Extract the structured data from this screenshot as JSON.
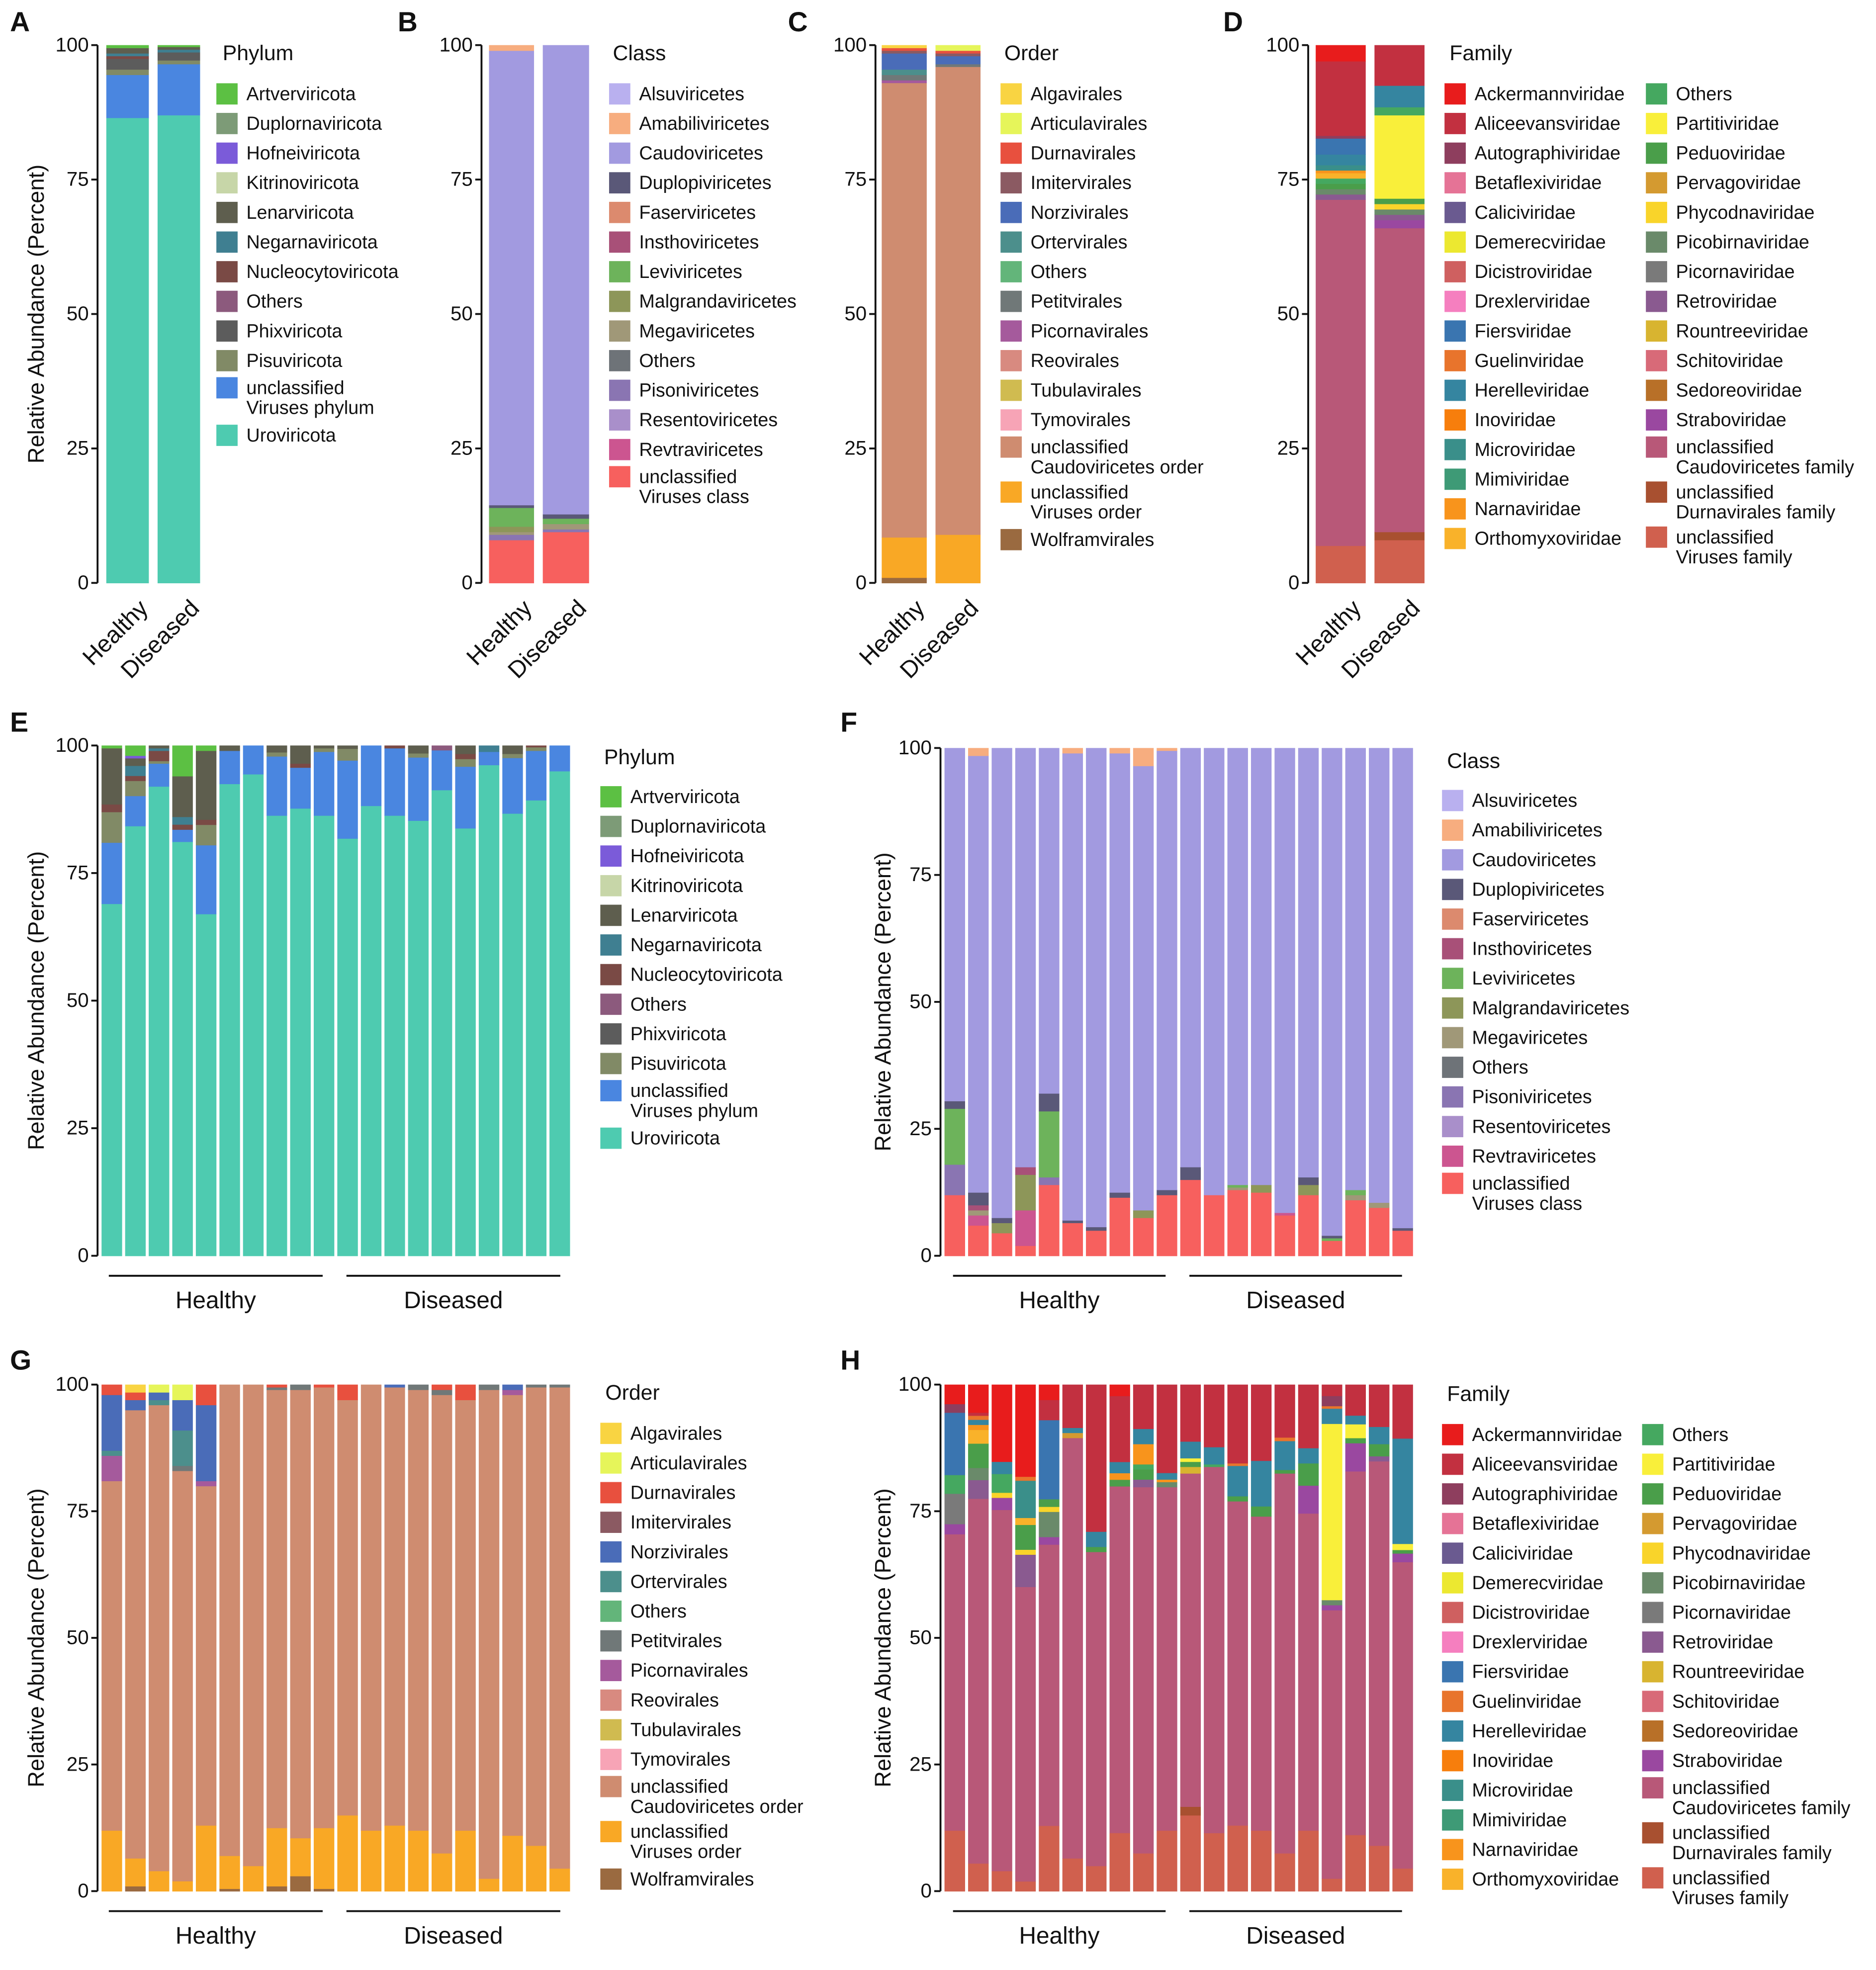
{
  "legends": {
    "phylum": {
      "title": "Phylum",
      "labels": [
        "Artverviricota",
        "Duplornaviricota",
        "Hofneiviricota",
        "Kitrinoviricota",
        "Lenarviricota",
        "Negarnaviricota",
        "Nucleocytoviricota",
        "Others",
        "Phixviricota",
        "Pisuviricota",
        "unclassified Viruses phylum",
        "Uroviricota"
      ],
      "colors": [
        "#5cc043",
        "#7d9b77",
        "#7b5bd9",
        "#c7d6a8",
        "#5e5e4e",
        "#3f7f91",
        "#7a4a45",
        "#8c5a7d",
        "#5c5c5c",
        "#818a66",
        "#4a86e0",
        "#4ecbb0"
      ]
    },
    "class": {
      "title": "Class",
      "labels": [
        "Alsuviricetes",
        "Amabiliviricetes",
        "Caudoviricetes",
        "Duplopiviricetes",
        "Faserviricetes",
        "Insthoviricetes",
        "Leviviricetes",
        "Malgrandaviricetes",
        "Megaviricetes",
        "Others",
        "Pisoniviricetes",
        "Resentoviricetes",
        "Revtraviricetes",
        "unclassified Viruses class"
      ],
      "colors": [
        "#b9b0ef",
        "#f7ad7f",
        "#a29ae0",
        "#5a5878",
        "#dc8a6e",
        "#a85078",
        "#6db35b",
        "#8d9659",
        "#a09878",
        "#6e7378",
        "#8a75b2",
        "#a98fca",
        "#cc5590",
        "#f7605e"
      ]
    },
    "order": {
      "title": "Order",
      "labels": [
        "Algavirales",
        "Articulavirales",
        "Durnavirales",
        "Imitervirales",
        "Norzivirales",
        "Ortervirales",
        "Others",
        "Petitvirales",
        "Picornavirales",
        "Reovirales",
        "Tubulavirales",
        "Tymovirales",
        "unclassified Caudoviricetes order",
        "unclassified Viruses order",
        "Wolframvirales"
      ],
      "colors": [
        "#f9d442",
        "#e6f55a",
        "#e8503e",
        "#8b5a62",
        "#4a6cb8",
        "#4c8f8c",
        "#63b57a",
        "#707878",
        "#a55a9c",
        "#d88a80",
        "#d0bb50",
        "#f7a4b6",
        "#cf8c70",
        "#f9a825",
        "#9a6a40"
      ]
    },
    "family": {
      "title": "Family",
      "labels": [
        "Ackermannviridae",
        "Aliceevansviridae",
        "Autographiviridae",
        "Betaflexiviridae",
        "Caliciviridae",
        "Demerecviridae",
        "Dicistroviridae",
        "Drexlerviridae",
        "Fiersviridae",
        "Guelinviridae",
        "Herelleviridae",
        "Inoviridae",
        "Microviridae",
        "Mimiviridae",
        "Narnaviridae",
        "Orthomyxoviridae",
        "Others",
        "Partitiviridae",
        "Peduoviridae",
        "Pervagoviridae",
        "Phycodnaviridae",
        "Picobirnaviridae",
        "Picornaviridae",
        "Retroviridae",
        "Rountreeviridae",
        "Schitoviridae",
        "Sedoreoviridae",
        "Straboviridae",
        "unclassified Caudoviricetes family",
        "unclassified Durnavirales family",
        "unclassified Viruses family"
      ],
      "colors": [
        "#e81c1c",
        "#c23040",
        "#8e3e5e",
        "#e57396",
        "#6a5a90",
        "#ece830",
        "#cf6060",
        "#f57fbf",
        "#3a75b0",
        "#e8742c",
        "#3585a0",
        "#f77e0c",
        "#3a8f8a",
        "#3e9a76",
        "#f8941c",
        "#f9b22a",
        "#45a860",
        "#f9ef3a",
        "#4a9e4a",
        "#d49a30",
        "#f9d42a",
        "#6a8a6a",
        "#7a7a7a",
        "#8a5a90",
        "#d8b430",
        "#d86a78",
        "#b87028",
        "#9a48a0",
        "#b85878",
        "#a85030",
        "#d0604e"
      ]
    }
  },
  "chart_data": [
    {
      "panel": "A",
      "type": "bar",
      "stacked": true,
      "legend": "phylum",
      "ylabel": "Relative Abundance (Percent)",
      "yticks": [
        "0",
        "25",
        "50",
        "75",
        "100"
      ],
      "ylim": [
        0,
        100
      ],
      "x": [
        "Healthy",
        "Diseased"
      ],
      "bars": [
        {
          "11": 86.5,
          "10": 8,
          "9": 1,
          "8": 2,
          "6": 0.5,
          "5": 0.5,
          "4": 1,
          "0": 0.5
        },
        {
          "11": 87,
          "10": 9.5,
          "9": 0.7,
          "8": 1.5,
          "5": 0.5,
          "4": 0.5,
          "0": 0.3
        }
      ]
    },
    {
      "panel": "B",
      "type": "bar",
      "stacked": true,
      "legend": "class",
      "yticks": [
        "0",
        "25",
        "50",
        "75",
        "100"
      ],
      "ylim": [
        0,
        100
      ],
      "x": [
        "Healthy",
        "Diseased"
      ],
      "bars": [
        {
          "13": 8,
          "10": 1,
          "8": 0.5,
          "7": 1,
          "6": 3.5,
          "3": 0.5,
          "2": 84.5,
          "1": 1
        },
        {
          "13": 9.5,
          "10": 0.5,
          "8": 1,
          "6": 1,
          "3": 0.8,
          "2": 87.2
        }
      ]
    },
    {
      "panel": "C",
      "type": "bar",
      "stacked": true,
      "legend": "order",
      "yticks": [
        "0",
        "25",
        "50",
        "75",
        "100"
      ],
      "ylim": [
        0,
        100
      ],
      "x": [
        "Healthy",
        "Diseased"
      ],
      "bars": [
        {
          "14": 1,
          "13": 7.5,
          "12": 84.5,
          "8": 0.5,
          "7": 1,
          "5": 1,
          "4": 3,
          "3": 0.5,
          "2": 0.5,
          "0": 0.5
        },
        {
          "13": 9,
          "12": 87,
          "7": 0.5,
          "4": 1.5,
          "3": 0.5,
          "2": 0.5,
          "1": 1
        }
      ]
    },
    {
      "panel": "D",
      "type": "bar",
      "stacked": true,
      "legend": "family",
      "yticks": [
        "0",
        "25",
        "50",
        "75",
        "100"
      ],
      "ylim": [
        0,
        100
      ],
      "x": [
        "Healthy",
        "Diseased"
      ],
      "bars": [
        {
          "30": 7,
          "28": 65,
          "23": 1,
          "21": 1,
          "18": 1,
          "16": 1,
          "15": 1,
          "14": 0.5,
          "12": 1,
          "10": 2,
          "8": 3,
          "2": 0.5,
          "1": 14,
          "0": 3
        },
        {
          "30": 8,
          "29": 1.5,
          "28": 56.5,
          "27": 1.5,
          "23": 1,
          "21": 1,
          "20": 1,
          "18": 1,
          "17": 15.5,
          "16": 1.5,
          "10": 4,
          "1": 7.5
        }
      ]
    },
    {
      "panel": "E",
      "type": "bar",
      "stacked": true,
      "legend": "phylum",
      "ylabel": "Relative Abundance (Percent)",
      "yticks": [
        "0",
        "25",
        "50",
        "75",
        "100"
      ],
      "ylim": [
        0,
        100
      ],
      "groups": [
        "Healthy",
        "Diseased"
      ],
      "bars_per_group": 10,
      "bars": [
        {
          "11": 69,
          "10": 12,
          "9": 6,
          "6": 1.5,
          "4": 11,
          "0": 0.5
        },
        {
          "11": 85.5,
          "10": 6,
          "9": 3,
          "6": 1,
          "5": 2,
          "4": 1.5,
          "2": 0.5,
          "0": 2
        },
        {
          "11": 92,
          "10": 4.5,
          "9": 0.5,
          "6": 2,
          "5": 0.5,
          "4": 0.5
        },
        {
          "11": 81.4,
          "10": 2.4,
          "6": 1,
          "5": 1.5,
          "4": 8,
          "0": 6
        },
        {
          "11": 67,
          "10": 13.5,
          "9": 4,
          "6": 1,
          "4": 13.5,
          "0": 1
        },
        {
          "11": 92.5,
          "10": 6.5,
          "4": 1
        },
        {
          "11": 94.4,
          "10": 5.6
        },
        {
          "11": 86.3,
          "10": 11.6,
          "9": 0.8,
          "4": 1.3
        },
        {
          "11": 87.7,
          "10": 8,
          "6": 0.8,
          "4": 3.5
        },
        {
          "11": 86.3,
          "10": 12.5,
          "9": 0.7,
          "4": 0.5
        },
        {
          "11": 81.8,
          "10": 15.3,
          "9": 2.3,
          "4": 0.6
        },
        {
          "11": 88.2,
          "10": 11.8
        },
        {
          "11": 86.3,
          "10": 13.2,
          "6": 0.5
        },
        {
          "11": 85.3,
          "10": 12.4,
          "9": 0.8,
          "4": 1.5
        },
        {
          "11": 91.3,
          "10": 7.8,
          "7": 0.9
        },
        {
          "11": 83.8,
          "10": 12.1,
          "9": 1.5,
          "6": 1,
          "4": 1.6
        },
        {
          "11": 96.2,
          "10": 2.6,
          "5": 1.2
        },
        {
          "11": 86.7,
          "10": 10.9,
          "9": 0.8,
          "4": 1.6
        },
        {
          "11": 89.3,
          "10": 9.7,
          "9": 0.7,
          "6": 0.3
        },
        {
          "11": 95,
          "10": 5
        }
      ]
    },
    {
      "panel": "F",
      "type": "bar",
      "stacked": true,
      "legend": "class",
      "ylabel": "Relative Abundance (Percent)",
      "yticks": [
        "0",
        "25",
        "50",
        "75",
        "100"
      ],
      "ylim": [
        0,
        100
      ],
      "groups": [
        "Healthy",
        "Diseased"
      ],
      "bars_per_group": 10,
      "bars": [
        {
          "13": 12,
          "10": 6,
          "6": 11,
          "3": 1.5,
          "2": 69.5
        },
        {
          "13": 6,
          "12": 2,
          "8": 1,
          "5": 1,
          "3": 2.5,
          "2": 86,
          "1": 1.5
        },
        {
          "13": 4.5,
          "7": 2,
          "3": 1,
          "2": 92.5
        },
        {
          "13": 2,
          "12": 7,
          "7": 7,
          "5": 1.5,
          "2": 82.5
        },
        {
          "13": 14,
          "10": 1.5,
          "6": 13,
          "3": 3.5,
          "2": 68
        },
        {
          "13": 6.5,
          "3": 0.5,
          "2": 92,
          "1": 1
        },
        {
          "13": 5,
          "3": 0.7,
          "2": 94.3
        },
        {
          "13": 11.5,
          "3": 1,
          "2": 86.5,
          "1": 1
        },
        {
          "13": 7.5,
          "7": 1.5,
          "2": 87.5,
          "1": 3.5
        },
        {
          "13": 12,
          "3": 1,
          "2": 86.5,
          "1": 0.5
        },
        {
          "13": 15,
          "3": 2.5,
          "2": 82.5
        },
        {
          "13": 12,
          "2": 88
        },
        {
          "13": 13,
          "8": 0.5,
          "6": 0.5,
          "2": 86
        },
        {
          "13": 12.5,
          "7": 1.5,
          "2": 86
        },
        {
          "13": 8,
          "12": 0.5,
          "2": 91.5
        },
        {
          "13": 12,
          "7": 2,
          "3": 1.5,
          "2": 84.5
        },
        {
          "13": 3,
          "6": 0.5,
          "3": 0.5,
          "2": 96
        },
        {
          "13": 11,
          "8": 1,
          "6": 1,
          "2": 87
        },
        {
          "13": 9.5,
          "8": 1,
          "2": 89.5
        },
        {
          "13": 5,
          "3": 0.5,
          "2": 94.5
        }
      ]
    },
    {
      "panel": "G",
      "type": "bar",
      "stacked": true,
      "legend": "order",
      "ylabel": "Relative Abundance (Percent)",
      "yticks": [
        "0",
        "25",
        "50",
        "75",
        "100"
      ],
      "ylim": [
        0,
        100
      ],
      "groups": [
        "Healthy",
        "Diseased"
      ],
      "bars_per_group": 10,
      "bars": [
        {
          "13": 12,
          "12": 69,
          "8": 5,
          "5": 1,
          "4": 11,
          "2": 2
        },
        {
          "14": 1,
          "13": 5.5,
          "12": 88.5,
          "4": 2,
          "2": 1.5,
          "0": 1.5
        },
        {
          "13": 4,
          "12": 92,
          "5": 1,
          "4": 1.5,
          "1": 1.5
        },
        {
          "13": 2,
          "12": 81,
          "7": 1,
          "5": 7,
          "4": 6,
          "1": 3
        },
        {
          "13": 13,
          "12": 67,
          "8": 1,
          "4": 15,
          "2": 4
        },
        {
          "14": 0.5,
          "13": 6.5,
          "12": 93
        },
        {
          "13": 5,
          "12": 95
        },
        {
          "14": 1,
          "13": 11.5,
          "12": 86.5,
          "7": 0.5,
          "2": 0.5
        },
        {
          "14": 3,
          "13": 7.5,
          "12": 88.5,
          "7": 1
        },
        {
          "14": 0.5,
          "13": 12,
          "12": 87,
          "2": 0.5
        },
        {
          "13": 15,
          "12": 82,
          "2": 3
        },
        {
          "13": 12,
          "12": 88
        },
        {
          "13": 13,
          "12": 86.5,
          "4": 0.5
        },
        {
          "13": 12,
          "12": 87,
          "7": 1
        },
        {
          "13": 7.5,
          "12": 90.5,
          "7": 1,
          "2": 1
        },
        {
          "13": 12,
          "12": 85,
          "2": 3
        },
        {
          "13": 2.5,
          "12": 96.5,
          "7": 1
        },
        {
          "13": 11,
          "12": 87,
          "8": 1,
          "4": 1
        },
        {
          "13": 9,
          "12": 90.5,
          "7": 0.5
        },
        {
          "13": 4.5,
          "12": 95,
          "7": 0.5
        }
      ]
    },
    {
      "panel": "H",
      "type": "bar",
      "stacked": true,
      "legend": "family",
      "ylabel": "Relative Abundance (Percent)",
      "yticks": [
        "0",
        "25",
        "50",
        "75",
        "100"
      ],
      "ylim": [
        0,
        100
      ],
      "groups": [
        "Healthy",
        "Diseased"
      ],
      "bars_per_group": 10,
      "bars": [
        {
          "30": 12,
          "28": 58.5,
          "27": 2,
          "22": 6,
          "16": 3.7,
          "8": 12.3,
          "2": 1.7,
          "0": 3.8
        },
        {
          "30": 5.5,
          "28": 72,
          "23": 3.7,
          "21": 2.4,
          "18": 4.8,
          "15": 2.7,
          "14": 1,
          "10": 1,
          "9": 0.8,
          "1": 0.6,
          "0": 5.5
        },
        {
          "30": 4,
          "28": 71.3,
          "27": 2.4,
          "20": 1,
          "16": 3.7,
          "10": 2.4,
          "0": 15.2
        },
        {
          "30": 2,
          "28": 59.3,
          "23": 6.5,
          "20": 1,
          "18": 5,
          "15": 1.4,
          "12": 7.5,
          "9": 0.8,
          "0": 18.5
        },
        {
          "30": 13,
          "28": 55.8,
          "27": 1.5,
          "21": 5,
          "20": 1,
          "18": 1.5,
          "8": 15.7,
          "1": 4,
          "0": 3
        },
        {
          "30": 6.5,
          "28": 83,
          "19": 1,
          "10": 1,
          "1": 8.5
        },
        {
          "30": 5,
          "28": 62,
          "18": 1,
          "10": 3,
          "1": 29
        },
        {
          "30": 11.5,
          "28": 68.3,
          "18": 1.3,
          "14": 1.3,
          "10": 2.2,
          "1": 13,
          "0": 2.2
        },
        {
          "30": 7.5,
          "28": 72.3,
          "23": 1.5,
          "18": 2,
          "16": 1,
          "14": 4,
          "10": 3,
          "1": 8.7
        },
        {
          "30": 12,
          "28": 67.8,
          "21": 1,
          "14": 0.5,
          "10": 1.3,
          "1": 17.4
        },
        {
          "30": 15,
          "29": 1.7,
          "28": 65.8,
          "24": 1.3,
          "18": 1,
          "17": 0.7,
          "10": 3.3,
          "1": 11.2
        },
        {
          "30": 11.5,
          "28": 72.3,
          "16": 0.5,
          "10": 3.4,
          "1": 12.3
        },
        {
          "30": 13,
          "28": 64,
          "18": 1,
          "10": 6,
          "9": 0.5,
          "1": 15.5
        },
        {
          "30": 12,
          "28": 62,
          "18": 2,
          "10": 9,
          "1": 15
        },
        {
          "30": 7.5,
          "28": 75,
          "18": 0.7,
          "10": 5.7,
          "9": 0.7,
          "1": 10.4
        },
        {
          "30": 12,
          "28": 62.6,
          "27": 5.5,
          "18": 4.4,
          "10": 3,
          "1": 12.5
        },
        {
          "30": 2.5,
          "28": 53,
          "27": 1,
          "21": 1,
          "17": 34.8,
          "10": 3,
          "9": 0.5,
          "2": 2,
          "1": 2.2
        },
        {
          "30": 11,
          "28": 71,
          "27": 5.5,
          "18": 1,
          "17": 2.7,
          "10": 1.7,
          "1": 6
        },
        {
          "30": 9,
          "28": 75.9,
          "23": 1,
          "18": 2.4,
          "10": 3.4,
          "1": 8.3
        },
        {
          "30": 4.5,
          "28": 60.5,
          "27": 1.7,
          "18": 0.7,
          "17": 1.2,
          "10": 20.8,
          "1": 10.6
        }
      ]
    }
  ]
}
